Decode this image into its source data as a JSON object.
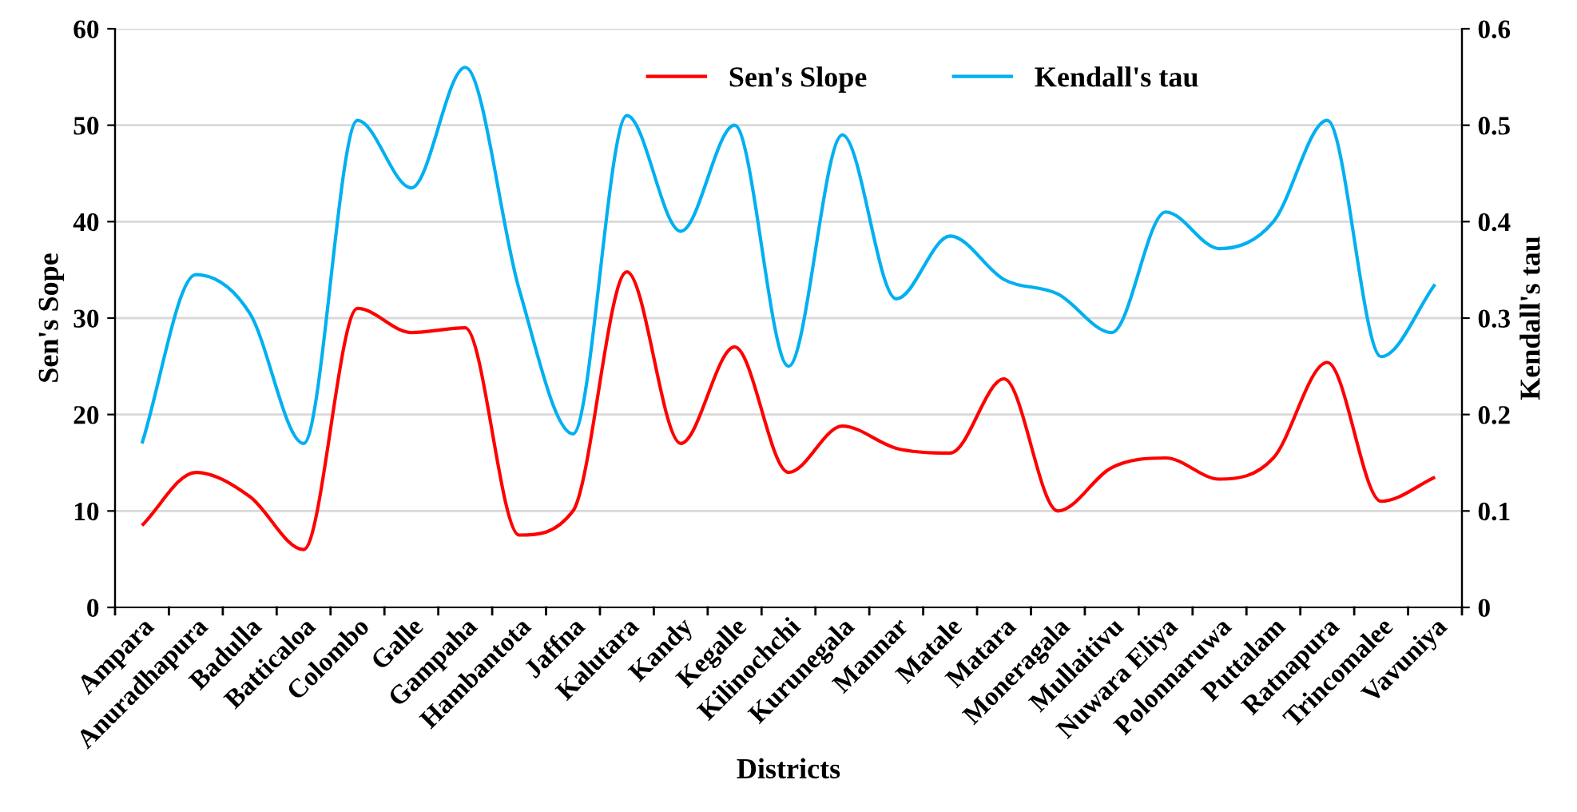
{
  "chart_data": {
    "type": "line",
    "xlabel": "Districts",
    "ylabel": "Sen's Sope",
    "y2label": "Kendall's tau",
    "categories": [
      "Ampara",
      "Anuradhapura",
      "Badulla",
      "Batticaloa",
      "Colombo",
      "Galle",
      "Gampaha",
      "Hambantota",
      "Jaffna",
      "Kalutara",
      "Kandy",
      "Kegalle",
      "Kilinochchi",
      "Kurunegala",
      "Mannar",
      "Matale",
      "Matara",
      "Moneragala",
      "Mullaitivu",
      "Nuwara Eliya",
      "Polonnaruwa",
      "Puttalam",
      "Ratnapura",
      "Trincomalee",
      "Vavuniya"
    ],
    "series": [
      {
        "name": "Sen's Slope",
        "color": "#ff0000",
        "values": [
          8.5,
          14,
          11.5,
          6,
          31,
          28.5,
          29,
          7.5,
          10,
          34.8,
          17,
          27,
          14,
          18.8,
          16.5,
          16,
          23.7,
          10,
          14.5,
          15.5,
          13.3,
          15.5,
          25.4,
          11,
          13.5
        ]
      },
      {
        "name": "Kendall's tau",
        "color": "#00b0f0",
        "axis": "y2",
        "values": [
          0.17,
          0.345,
          0.305,
          0.17,
          0.505,
          0.435,
          0.56,
          0.33,
          0.18,
          0.51,
          0.39,
          0.5,
          0.25,
          0.49,
          0.32,
          0.385,
          0.34,
          0.325,
          0.285,
          0.41,
          0.372,
          0.4,
          0.505,
          0.26,
          0.335
        ]
      }
    ],
    "ylim": [
      0,
      60
    ],
    "yticks": [
      0,
      10,
      20,
      30,
      40,
      50,
      60
    ],
    "y2lim": [
      0,
      0.6
    ],
    "y2ticks": [
      0,
      0.1,
      0.2,
      0.3,
      0.4,
      0.5,
      0.6
    ],
    "grid": "y",
    "legend": "top",
    "marker": "none",
    "line_style": "solid"
  }
}
